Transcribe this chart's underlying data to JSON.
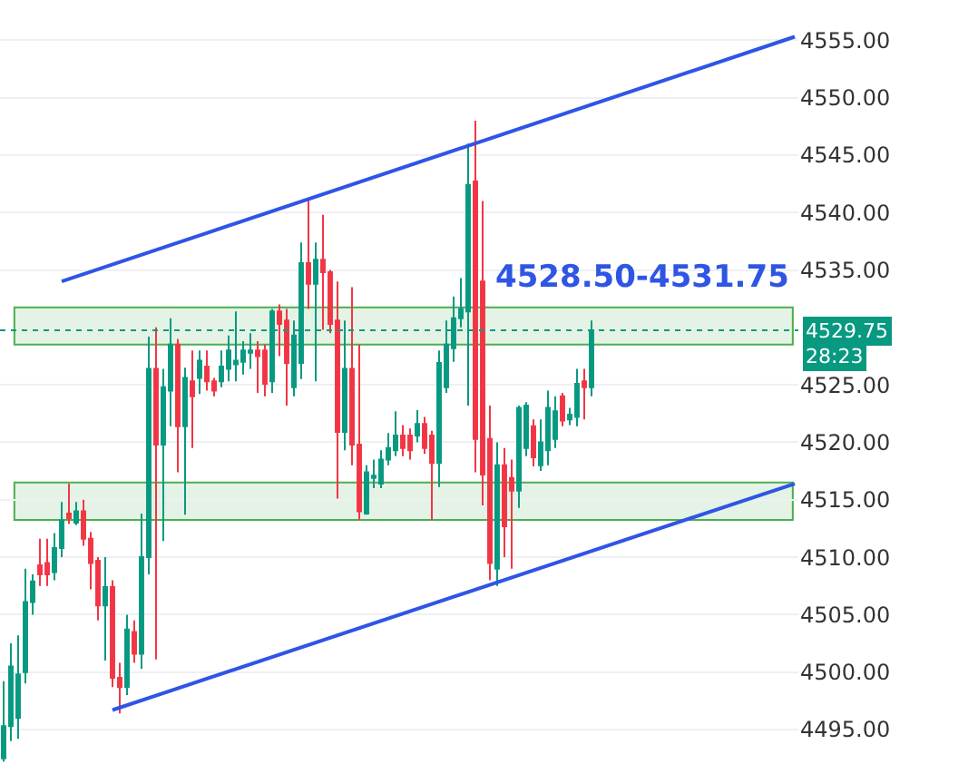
{
  "chart_data": {
    "type": "candlestick",
    "categories": [
      null,
      null,
      null,
      null,
      null,
      null,
      null,
      null,
      null,
      null,
      null,
      null,
      null,
      null,
      null,
      null,
      null,
      null,
      null,
      null,
      null,
      null,
      null,
      null,
      null,
      null,
      null,
      null,
      null,
      null,
      null,
      null,
      null,
      null,
      null,
      null,
      null,
      null,
      null,
      null,
      null,
      null,
      null,
      null,
      null,
      null,
      null,
      null,
      null,
      null,
      null,
      null,
      null,
      null,
      null,
      null,
      null,
      null,
      null,
      null,
      null,
      null,
      null,
      null,
      null,
      null,
      null,
      null,
      null,
      null,
      null,
      null,
      null,
      null,
      null,
      null,
      null,
      null,
      null,
      null,
      null,
      null,
      null,
      null,
      null,
      null,
      null,
      null,
      null,
      null,
      null,
      null,
      null,
      null,
      null,
      null,
      null,
      null,
      null,
      null,
      null,
      null,
      null,
      null,
      null,
      null,
      null,
      null,
      null,
      null
    ],
    "ohlc": [
      [
        4492.5,
        4499.2,
        4492.2,
        4495.3
      ],
      [
        4495.3,
        4502.5,
        4494,
        4500.5
      ],
      [
        4496,
        4503.2,
        4494.2,
        4499.8
      ],
      [
        4500,
        4509,
        4499,
        4506.1
      ],
      [
        4506.1,
        4508.5,
        4505,
        4507.9
      ],
      [
        4509.3,
        4511.6,
        4507.5,
        4508.5
      ],
      [
        4509.5,
        4511.6,
        4507.5,
        4508.5
      ],
      [
        4508.7,
        4512.1,
        4508,
        4510.8
      ],
      [
        4510.8,
        4514.8,
        4510,
        4513.2
      ],
      [
        4513.8,
        4516.4,
        4512.9,
        4513.4
      ],
      [
        4513,
        4514.8,
        4512.8,
        4514
      ],
      [
        4514,
        4515,
        4511,
        4511.6
      ],
      [
        4511.6,
        4512.2,
        4507.2,
        4509.5
      ],
      [
        4509.7,
        4510,
        4504.5,
        4505.8
      ],
      [
        4505.8,
        4510,
        4501,
        4507.4
      ],
      [
        4507.4,
        4508,
        4498.7,
        4499.5
      ],
      [
        4499.5,
        4500.8,
        4496.4,
        4498.7
      ],
      [
        4498.7,
        4505,
        4498,
        4503.7
      ],
      [
        4503.5,
        4504.5,
        4500.8,
        4501.6
      ],
      [
        4501.6,
        4513.8,
        4500.3,
        4510
      ],
      [
        4510,
        4529.2,
        4508.5,
        4526.4
      ],
      [
        4526.4,
        4530,
        4501.1,
        4519.8
      ],
      [
        4519.8,
        4526.4,
        4511.4,
        4524.8
      ],
      [
        4524.5,
        4530.8,
        4521.4,
        4528.5
      ],
      [
        4528.5,
        4529,
        4517.4,
        4521.4
      ],
      [
        4521.4,
        4526.5,
        4513.7,
        4525.6
      ],
      [
        4525.3,
        4528,
        4519.5,
        4524
      ],
      [
        4525.6,
        4528,
        4524.2,
        4527.1
      ],
      [
        4526.6,
        4528,
        4524.5,
        4525.3
      ],
      [
        4525.3,
        4525.6,
        4524,
        4524.5
      ],
      [
        4525.3,
        4528,
        4524.8,
        4526.6
      ],
      [
        4526.4,
        4529.3,
        4525.3,
        4528
      ],
      [
        4526.8,
        4531.4,
        4525.3,
        4527.1
      ],
      [
        4527,
        4528.8,
        4525.9,
        4528
      ],
      [
        4527.8,
        4529.5,
        4526.4,
        4528
      ],
      [
        4528,
        4528.8,
        4524.3,
        4527.5
      ],
      [
        4528,
        4528.5,
        4524,
        4525.1
      ],
      [
        4525.3,
        4531.6,
        4524.3,
        4531.4
      ],
      [
        4531.4,
        4532,
        4527.5,
        4530.3
      ],
      [
        4530.6,
        4531.6,
        4523.2,
        4526.9
      ],
      [
        4524.8,
        4530.6,
        4524,
        4529.3
      ],
      [
        4526.9,
        4537.4,
        4525.5,
        4535.6
      ],
      [
        4535.6,
        4541.1,
        4531.6,
        4533.8
      ],
      [
        4533.8,
        4537.4,
        4525.3,
        4535.9
      ],
      [
        4535.9,
        4539.8,
        4529.8,
        4534.8
      ],
      [
        4534.8,
        4535,
        4529.5,
        4530.3
      ],
      [
        4530.6,
        4534,
        4515.1,
        4520.9
      ],
      [
        4520.9,
        4530.6,
        4519.3,
        4526.4
      ],
      [
        4526.4,
        4533.5,
        4518,
        4519.8
      ],
      [
        4519.8,
        4528.5,
        4513.2,
        4514
      ],
      [
        4513.8,
        4518,
        4513.7,
        4517.4
      ],
      [
        4516.9,
        4518.5,
        4516,
        4517.1
      ],
      [
        4516.4,
        4519.3,
        4516,
        4518.5
      ],
      [
        4518.5,
        4520.8,
        4518,
        4519.5
      ],
      [
        4519.3,
        4522.7,
        4518.8,
        4520.6
      ],
      [
        4520.6,
        4521.5,
        4518.8,
        4519.5
      ],
      [
        4520.6,
        4521.2,
        4518.5,
        4519.3
      ],
      [
        4520.6,
        4522.8,
        4520,
        4521.6
      ],
      [
        4521.6,
        4522.2,
        4519,
        4519.5
      ],
      [
        4520.6,
        4521,
        4513.2,
        4518.2
      ],
      [
        4518.2,
        4528,
        4516.1,
        4526.9
      ],
      [
        4524.8,
        4530.6,
        4524.3,
        4528.5
      ],
      [
        4528.2,
        4532.7,
        4527,
        4530.8
      ],
      [
        4530.8,
        4534.3,
        4530,
        4531.6
      ],
      [
        4531.4,
        4546,
        4523.2,
        4542.4
      ],
      [
        4542.7,
        4548,
        4517.4,
        4520.3
      ],
      [
        4534,
        4541,
        4514.5,
        4517.2
      ],
      [
        4520.3,
        4523.2,
        4508,
        4509.5
      ],
      [
        4509,
        4520,
        4507.5,
        4518
      ],
      [
        4518,
        4519.5,
        4510,
        4512.7
      ],
      [
        4516.9,
        4518.5,
        4509,
        4515.8
      ],
      [
        4515.8,
        4523.2,
        4514.3,
        4523
      ],
      [
        4519.5,
        4523.5,
        4518.8,
        4523.2
      ],
      [
        4521.4,
        4522,
        4517.9,
        4518.7
      ],
      [
        4518,
        4522,
        4517.5,
        4520
      ],
      [
        4519.3,
        4524.5,
        4518,
        4523
      ],
      [
        4520.3,
        4524,
        4519.5,
        4522.7
      ],
      [
        4524,
        4524.3,
        4521.4,
        4521.9
      ],
      [
        4522,
        4523,
        4521.5,
        4522.4
      ],
      [
        4522.2,
        4526.4,
        4521.4,
        4525.1
      ],
      [
        4525.3,
        4526.4,
        4522,
        4524.8
      ],
      [
        4524.8,
        4530.6,
        4524,
        4529.75
      ],
      null,
      null,
      null,
      null,
      null,
      null,
      null,
      null,
      null,
      null,
      null,
      null,
      null,
      null,
      null,
      null,
      null,
      null,
      null,
      null,
      null,
      null,
      null,
      null,
      null,
      null,
      null,
      null
    ],
    "colors": [
      "#089981",
      "#089981",
      "#089981",
      "#089981",
      "#089981",
      "#f23645",
      "#f23645",
      "#089981",
      "#089981",
      "#f23645",
      "#089981",
      "#f23645",
      "#f23645",
      "#f23645",
      "#089981",
      "#f23645",
      "#f23645",
      "#089981",
      "#f23645",
      "#089981",
      "#089981",
      "#f23645",
      "#089981",
      "#089981",
      "#f23645",
      "#089981",
      "#f23645",
      "#089981",
      "#f23645",
      "#f23645",
      "#089981",
      "#089981",
      "#089981",
      "#089981",
      "#089981",
      "#f23645",
      "#f23645",
      "#089981",
      "#f23645",
      "#f23645",
      "#089981",
      "#089981",
      "#f23645",
      "#089981",
      "#f23645",
      "#f23645",
      "#f23645",
      "#089981",
      "#f23645",
      "#f23645",
      "#089981",
      "#089981",
      "#089981",
      "#089981",
      "#089981",
      "#f23645",
      "#f23645",
      "#089981",
      "#f23645",
      "#f23645",
      "#089981",
      "#089981",
      "#089981",
      "#089981",
      "#089981",
      "#f23645",
      "#f23645",
      "#f23645",
      "#089981",
      "#f23645",
      "#f23645",
      "#089981",
      "#089981",
      "#f23645",
      "#089981",
      "#089981",
      "#089981",
      "#f23645",
      "#089981",
      "#089981",
      "#f23645",
      "#089981",
      null,
      null,
      null,
      null,
      null,
      null,
      null,
      null,
      null,
      null,
      null,
      null,
      null,
      null,
      null,
      null,
      null,
      null,
      null,
      null,
      null,
      null,
      null,
      null,
      null,
      null,
      null,
      null
    ],
    "series": [
      {
        "type": "line",
        "color": "#2f55e4",
        "values": [
          null,
          null,
          null,
          null,
          null,
          null,
          null,
          null,
          4534,
          null,
          null,
          null,
          null,
          null,
          null,
          null,
          null,
          null,
          null,
          null,
          null,
          null,
          null,
          null,
          null,
          null,
          null,
          null,
          null,
          null,
          null,
          null,
          null,
          null,
          null,
          null,
          null,
          null,
          null,
          null,
          null,
          null,
          null,
          null,
          null,
          null,
          null,
          null,
          null,
          null,
          null,
          null,
          null,
          null,
          null,
          null,
          null,
          null,
          null,
          null,
          null,
          null,
          null,
          null,
          null,
          null,
          null,
          null,
          null,
          null,
          null,
          null,
          null,
          null,
          null,
          null,
          null,
          null,
          null,
          null,
          null,
          null,
          null,
          null,
          null,
          null,
          null,
          null,
          null,
          null,
          null,
          null,
          null,
          null,
          null,
          null,
          null,
          null,
          null,
          null,
          null,
          null,
          null,
          null,
          null,
          null,
          null,
          null,
          null,
          4555.3
        ]
      },
      {
        "type": "line",
        "color": "#2f55e4",
        "values": [
          null,
          null,
          null,
          null,
          null,
          null,
          null,
          null,
          null,
          null,
          null,
          null,
          null,
          null,
          null,
          4496.7,
          null,
          null,
          null,
          null,
          null,
          null,
          null,
          null,
          null,
          null,
          null,
          null,
          null,
          null,
          null,
          null,
          null,
          null,
          null,
          null,
          null,
          null,
          null,
          null,
          null,
          null,
          null,
          null,
          null,
          null,
          null,
          null,
          null,
          null,
          null,
          null,
          null,
          null,
          null,
          null,
          null,
          null,
          null,
          null,
          null,
          null,
          null,
          null,
          null,
          null,
          null,
          null,
          null,
          null,
          null,
          null,
          null,
          null,
          null,
          null,
          null,
          null,
          null,
          null,
          null,
          null,
          null,
          null,
          null,
          null,
          null,
          null,
          null,
          null,
          null,
          null,
          null,
          null,
          null,
          null,
          null,
          null,
          null,
          null,
          null,
          null,
          null,
          null,
          null,
          null,
          null,
          null,
          null,
          4516.4
        ]
      }
    ],
    "ylim": [
      4492,
      4558.5
    ],
    "yticks": [
      {
        "value": 4495,
        "label": "4495.00"
      },
      {
        "value": 4500,
        "label": "4500.00"
      },
      {
        "value": 4505,
        "label": "4505.00"
      },
      {
        "value": 4510,
        "label": "4510.00"
      },
      {
        "value": 4515,
        "label": "4515.00"
      },
      {
        "value": 4520,
        "label": "4520.00"
      },
      {
        "value": 4525,
        "label": "4525.00"
      },
      {
        "value": 4535,
        "label": "4535.00"
      },
      {
        "value": 4540,
        "label": "4540.00"
      },
      {
        "value": 4545,
        "label": "4545.00"
      },
      {
        "value": 4550,
        "label": "4550.00"
      },
      {
        "value": 4555,
        "label": "4555.00"
      }
    ],
    "tick_labels": "y",
    "grid": "y",
    "bands": [
      {
        "axis": "y",
        "from": 4528.5,
        "to": 4531.75,
        "color": "#4caf50"
      },
      {
        "axis": "y",
        "from": 4513.25,
        "to": 4516.5,
        "color": "#4caf50"
      }
    ],
    "ref_lines": [
      {
        "axis": "y",
        "value": 4529.75,
        "label": "4529.75",
        "color": "#089981",
        "line_style": "dotted"
      }
    ],
    "annotations": [
      "4528.50-4531.75",
      "28:23"
    ]
  }
}
